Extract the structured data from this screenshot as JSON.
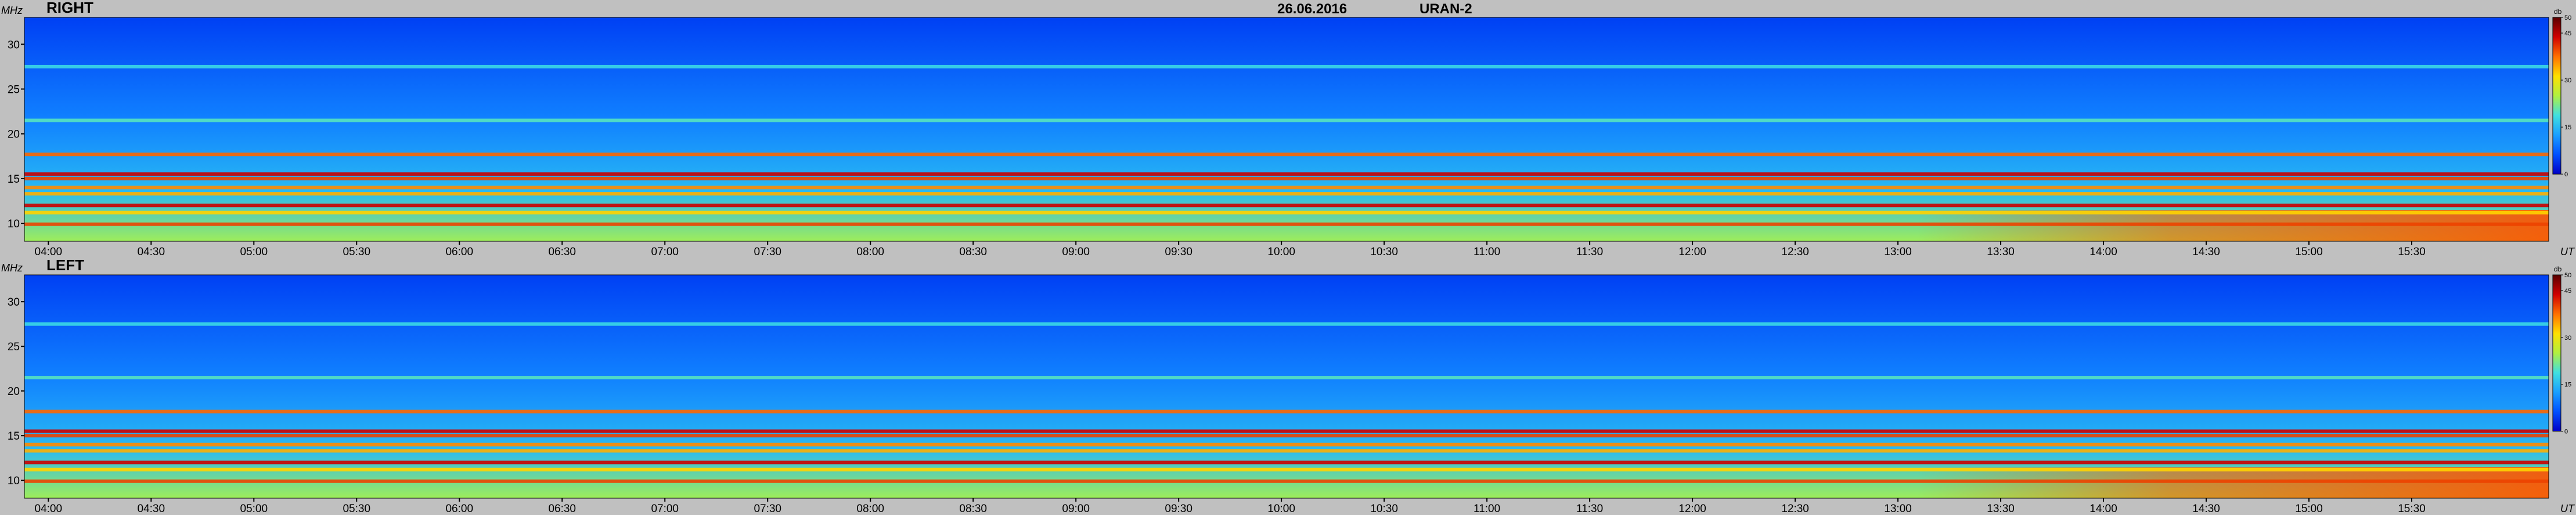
{
  "header": {
    "date": "26.06.2016",
    "instrument": "URAN-2"
  },
  "colors": {
    "background": "#c0c0c0",
    "colormap": [
      "#0000c8",
      "#0050ff",
      "#1aa0ff",
      "#40e0e0",
      "#b0f040",
      "#ffe000",
      "#ff7000",
      "#d00000",
      "#5a0000"
    ]
  },
  "chart_data": [
    {
      "type": "heatmap",
      "title": "RIGHT",
      "ylabel": "MHz",
      "xlabel": "UT",
      "ylim": [
        8,
        33
      ],
      "yticks": [
        10,
        15,
        20,
        25,
        30
      ],
      "ytick_labels": [
        "10",
        "15",
        "20",
        "25",
        "30"
      ],
      "xlim": [
        "03:53",
        "16:10"
      ],
      "xticks": [
        "04:00",
        "04:30",
        "05:00",
        "05:30",
        "06:00",
        "06:30",
        "07:00",
        "07:30",
        "08:00",
        "08:30",
        "09:00",
        "09:30",
        "10:00",
        "10:30",
        "11:00",
        "11:30",
        "12:00",
        "12:30",
        "13:00",
        "13:30",
        "14:00",
        "14:30",
        "15:00",
        "15:30"
      ],
      "colorbar": {
        "unit": "db",
        "range": [
          0,
          50
        ],
        "ticks": [
          "0",
          "15",
          "30",
          "45",
          "50"
        ]
      },
      "bands": [
        {
          "mhz": 9.9,
          "level": 40
        },
        {
          "mhz": 11.2,
          "level": 32
        },
        {
          "mhz": 12.0,
          "level": 44
        },
        {
          "mhz": 13.3,
          "level": 34
        },
        {
          "mhz": 14.0,
          "level": 36
        },
        {
          "mhz": 15.0,
          "level": 40
        },
        {
          "mhz": 15.5,
          "level": 44
        },
        {
          "mhz": 17.7,
          "level": 38
        },
        {
          "mhz": 21.5,
          "level": 20
        },
        {
          "mhz": 27.5,
          "level": 18
        }
      ]
    },
    {
      "type": "heatmap",
      "title": "LEFT",
      "ylabel": "MHz",
      "xlabel": "UT",
      "ylim": [
        8,
        33
      ],
      "yticks": [
        10,
        15,
        20,
        25,
        30
      ],
      "ytick_labels": [
        "10",
        "15",
        "20",
        "25",
        "30"
      ],
      "xlim": [
        "03:53",
        "16:10"
      ],
      "xticks": [
        "04:00",
        "04:30",
        "05:00",
        "05:30",
        "06:00",
        "06:30",
        "07:00",
        "07:30",
        "08:00",
        "08:30",
        "09:00",
        "09:30",
        "10:00",
        "10:30",
        "11:00",
        "11:30",
        "12:00",
        "12:30",
        "13:00",
        "13:30",
        "14:00",
        "14:30",
        "15:00",
        "15:30"
      ],
      "colorbar": {
        "unit": "db",
        "range": [
          0,
          50
        ],
        "ticks": [
          "0",
          "15",
          "30",
          "45",
          "50"
        ]
      },
      "bands": [
        {
          "mhz": 9.9,
          "level": 40
        },
        {
          "mhz": 11.2,
          "level": 32
        },
        {
          "mhz": 12.0,
          "level": 44
        },
        {
          "mhz": 13.3,
          "level": 34
        },
        {
          "mhz": 14.0,
          "level": 36
        },
        {
          "mhz": 15.0,
          "level": 40
        },
        {
          "mhz": 15.5,
          "level": 44
        },
        {
          "mhz": 17.7,
          "level": 38
        },
        {
          "mhz": 21.5,
          "level": 20
        },
        {
          "mhz": 27.5,
          "level": 18
        }
      ]
    }
  ]
}
